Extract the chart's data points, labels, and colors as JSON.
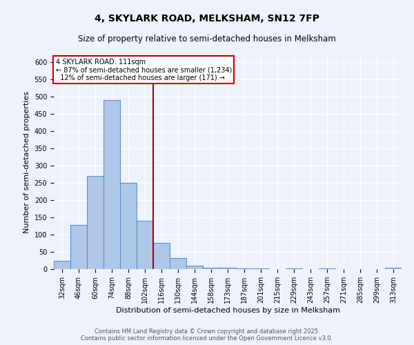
{
  "title": "4, SKYLARK ROAD, MELKSHAM, SN12 7FP",
  "subtitle": "Size of property relative to semi-detached houses in Melksham",
  "xlabel": "Distribution of semi-detached houses by size in Melksham",
  "ylabel": "Number of semi-detached properties",
  "footer_line1": "Contains HM Land Registry data © Crown copyright and database right 2025.",
  "footer_line2": "Contains public sector information licensed under the Open Government Licence v3.0.",
  "categories": [
    "32sqm",
    "46sqm",
    "60sqm",
    "74sqm",
    "88sqm",
    "102sqm",
    "116sqm",
    "130sqm",
    "144sqm",
    "158sqm",
    "173sqm",
    "187sqm",
    "201sqm",
    "215sqm",
    "229sqm",
    "243sqm",
    "257sqm",
    "271sqm",
    "285sqm",
    "299sqm",
    "313sqm"
  ],
  "values": [
    25,
    128,
    270,
    490,
    250,
    140,
    76,
    32,
    11,
    5,
    5,
    2,
    2,
    0,
    2,
    0,
    2,
    0,
    0,
    0,
    4
  ],
  "bar_color": "#aec6e8",
  "bar_edge_color": "#5585c5",
  "vline_color": "#aa0000",
  "annotation_text": "4 SKYLARK ROAD: 111sqm\n← 87% of semi-detached houses are smaller (1,234)\n  12% of semi-detached houses are larger (171) →",
  "annotation_box_color": "#ffffff",
  "annotation_box_edge_color": "#cc0000",
  "ylim": [
    0,
    620
  ],
  "yticks": [
    0,
    50,
    100,
    150,
    200,
    250,
    300,
    350,
    400,
    450,
    500,
    550,
    600
  ],
  "bg_color": "#eef2fb",
  "plot_bg_color": "#eef2fb",
  "grid_color": "#ffffff",
  "title_fontsize": 10,
  "subtitle_fontsize": 8.5,
  "label_fontsize": 8,
  "tick_fontsize": 7,
  "footer_fontsize": 6,
  "annotation_fontsize": 7
}
